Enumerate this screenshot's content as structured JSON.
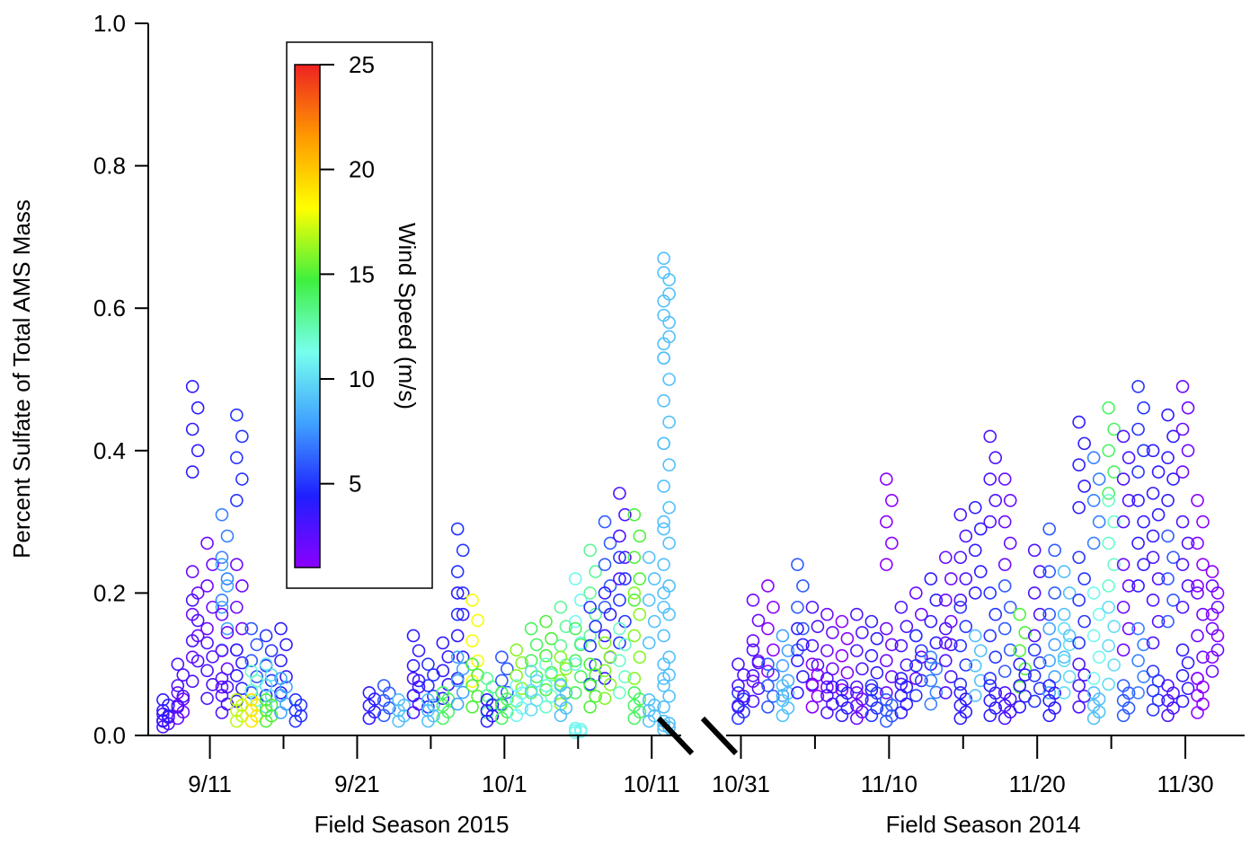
{
  "chart_data": {
    "type": "scatter",
    "title": "",
    "ylabel": "Percent Sulfate of Total AMS Mass",
    "ylim": [
      0,
      1.0
    ],
    "y_ticks": [
      "0.0",
      "0.2",
      "0.4",
      "0.6",
      "0.8",
      "1.0"
    ],
    "y_tick_values": [
      0,
      0.2,
      0.4,
      0.6,
      0.8,
      1.0
    ],
    "x_axis_break": true,
    "segments": [
      {
        "xlabel": "Field Season 2015",
        "x_range": [
          "9/7",
          "10/13"
        ],
        "x_ticks": [
          "9/11",
          "9/21",
          "10/1",
          "10/11"
        ]
      },
      {
        "xlabel": "Field Season 2014",
        "x_range": [
          "10/30",
          "12/4"
        ],
        "x_ticks": [
          "10/31",
          "11/10",
          "11/20",
          "11/30"
        ]
      }
    ],
    "colorbar": {
      "label": "Wind Speed (m/s)",
      "range": [
        1,
        25
      ],
      "ticks": [
        "5",
        "10",
        "15",
        "20",
        "25"
      ],
      "tick_values": [
        5,
        10,
        15,
        20,
        25
      ],
      "colormap": [
        "#8b00ff",
        "#1f1fff",
        "#3fa0ff",
        "#77ffee",
        "#3ff03f",
        "#ffff00",
        "#ff9900",
        "#ee2222"
      ]
    },
    "series": [
      {
        "points": [
          [
            "9/8",
            0.03,
            3
          ],
          [
            "9/8",
            0.05,
            4
          ],
          [
            "9/9",
            0.06,
            2
          ],
          [
            "9/9",
            0.1,
            3
          ],
          [
            "9/10",
            0.23,
            2
          ],
          [
            "9/10",
            0.49,
            4
          ],
          [
            "9/10",
            0.19,
            3
          ],
          [
            "9/11",
            0.27,
            2
          ],
          [
            "9/11",
            0.13,
            3
          ],
          [
            "9/12",
            0.31,
            7
          ],
          [
            "9/12",
            0.24,
            8
          ],
          [
            "9/12",
            0.17,
            2
          ],
          [
            "9/12",
            0.08,
            3
          ],
          [
            "9/13",
            0.45,
            5
          ],
          [
            "9/13",
            0.24,
            2
          ],
          [
            "9/13",
            0.12,
            4
          ],
          [
            "9/13",
            0.05,
            17
          ],
          [
            "9/14",
            0.15,
            6
          ],
          [
            "9/14",
            0.09,
            12
          ],
          [
            "9/14",
            0.05,
            19
          ],
          [
            "9/15",
            0.14,
            5
          ],
          [
            "9/15",
            0.1,
            10
          ],
          [
            "9/15",
            0.05,
            15
          ],
          [
            "9/16",
            0.15,
            4
          ],
          [
            "9/16",
            0.08,
            8
          ],
          [
            "9/17",
            0.05,
            5
          ]
        ]
      },
      {
        "points": [
          [
            "9/22",
            0.06,
            4
          ],
          [
            "9/23",
            0.07,
            6
          ],
          [
            "9/24",
            0.05,
            9
          ],
          [
            "9/25",
            0.08,
            3
          ],
          [
            "9/25",
            0.14,
            4
          ],
          [
            "9/26",
            0.1,
            5
          ],
          [
            "9/26",
            0.05,
            9
          ],
          [
            "9/27",
            0.13,
            4
          ],
          [
            "9/27",
            0.06,
            14
          ],
          [
            "9/28",
            0.29,
            5
          ],
          [
            "9/28",
            0.2,
            4
          ],
          [
            "9/28",
            0.11,
            8
          ],
          [
            "9/29",
            0.19,
            18
          ],
          [
            "9/29",
            0.1,
            15
          ],
          [
            "9/30",
            0.08,
            13
          ],
          [
            "9/30",
            0.05,
            4
          ],
          [
            "10/1",
            0.11,
            6
          ],
          [
            "10/1",
            0.06,
            14
          ],
          [
            "10/2",
            0.12,
            16
          ],
          [
            "10/2",
            0.07,
            11
          ],
          [
            "10/3",
            0.15,
            14
          ],
          [
            "10/3",
            0.09,
            10
          ],
          [
            "10/4",
            0.16,
            15
          ],
          [
            "10/4",
            0.1,
            12
          ],
          [
            "10/5",
            0.18,
            13
          ],
          [
            "10/5",
            0.11,
            16
          ],
          [
            "10/5",
            0.07,
            9
          ],
          [
            "10/6",
            0.22,
            11
          ],
          [
            "10/6",
            0.15,
            14
          ],
          [
            "10/6",
            0.01,
            11
          ],
          [
            "10/7",
            0.26,
            13
          ],
          [
            "10/7",
            0.18,
            5
          ],
          [
            "10/7",
            0.1,
            15
          ],
          [
            "10/8",
            0.3,
            6
          ],
          [
            "10/8",
            0.2,
            4
          ],
          [
            "10/8",
            0.13,
            16
          ],
          [
            "10/9",
            0.34,
            3
          ],
          [
            "10/9",
            0.25,
            5
          ],
          [
            "10/9",
            0.15,
            12
          ],
          [
            "10/10",
            0.31,
            15
          ],
          [
            "10/10",
            0.2,
            16
          ],
          [
            "10/10",
            0.06,
            14
          ],
          [
            "10/11",
            0.25,
            9
          ],
          [
            "10/11",
            0.05,
            9
          ],
          [
            "10/12",
            0.67,
            9
          ],
          [
            "10/12",
            0.65,
            9
          ],
          [
            "10/12",
            0.41,
            9
          ],
          [
            "10/12",
            0.3,
            9
          ],
          [
            "10/12",
            0.2,
            9
          ],
          [
            "10/12",
            0.1,
            9
          ],
          [
            "10/12",
            0.02,
            9
          ],
          [
            "10/12",
            0.53,
            9
          ]
        ]
      },
      {
        "points": [
          [
            "10/31",
            0.06,
            5
          ],
          [
            "10/31",
            0.1,
            3
          ],
          [
            "11/1",
            0.19,
            2
          ],
          [
            "11/1",
            0.12,
            3
          ],
          [
            "11/2",
            0.21,
            1
          ],
          [
            "11/2",
            0.1,
            6
          ],
          [
            "11/3",
            0.14,
            8
          ],
          [
            "11/3",
            0.07,
            9
          ],
          [
            "11/4",
            0.24,
            6
          ],
          [
            "11/4",
            0.15,
            4
          ],
          [
            "11/5",
            0.18,
            3
          ],
          [
            "11/5",
            0.1,
            1
          ],
          [
            "11/6",
            0.17,
            2
          ],
          [
            "11/6",
            0.08,
            3
          ],
          [
            "11/7",
            0.16,
            1
          ],
          [
            "11/7",
            0.07,
            4
          ],
          [
            "11/8",
            0.17,
            3
          ],
          [
            "11/8",
            0.06,
            2
          ],
          [
            "11/9",
            0.16,
            4
          ],
          [
            "11/9",
            0.07,
            5
          ],
          [
            "11/10",
            0.36,
            1
          ],
          [
            "11/10",
            0.15,
            2
          ],
          [
            "11/10",
            0.05,
            6
          ],
          [
            "11/11",
            0.18,
            3
          ],
          [
            "11/11",
            0.08,
            4
          ],
          [
            "11/12",
            0.2,
            2
          ],
          [
            "11/12",
            0.14,
            5
          ],
          [
            "11/13",
            0.22,
            4
          ],
          [
            "11/13",
            0.11,
            7
          ],
          [
            "11/14",
            0.25,
            2
          ],
          [
            "11/14",
            0.15,
            3
          ],
          [
            "11/15",
            0.31,
            3
          ],
          [
            "11/15",
            0.18,
            5
          ],
          [
            "11/15",
            0.06,
            4
          ],
          [
            "11/16",
            0.32,
            4
          ],
          [
            "11/16",
            0.14,
            9
          ],
          [
            "11/17",
            0.42,
            3
          ],
          [
            "11/17",
            0.2,
            5
          ],
          [
            "11/17",
            0.07,
            4
          ],
          [
            "11/18",
            0.36,
            2
          ],
          [
            "11/18",
            0.21,
            6
          ],
          [
            "11/18",
            0.06,
            3
          ],
          [
            "11/19",
            0.17,
            15
          ],
          [
            "11/19",
            0.1,
            4
          ],
          [
            "11/20",
            0.26,
            3
          ],
          [
            "11/20",
            0.12,
            5
          ],
          [
            "11/21",
            0.29,
            6
          ],
          [
            "11/21",
            0.15,
            8
          ],
          [
            "11/21",
            0.07,
            4
          ],
          [
            "11/22",
            0.23,
            9
          ],
          [
            "11/22",
            0.15,
            10
          ],
          [
            "11/23",
            0.44,
            4
          ],
          [
            "11/23",
            0.25,
            5
          ],
          [
            "11/23",
            0.1,
            3
          ],
          [
            "11/24",
            0.39,
            7
          ],
          [
            "11/24",
            0.2,
            11
          ],
          [
            "11/24",
            0.06,
            9
          ],
          [
            "11/25",
            0.46,
            14
          ],
          [
            "11/25",
            0.33,
            12
          ],
          [
            "11/25",
            0.18,
            10
          ],
          [
            "11/26",
            0.42,
            3
          ],
          [
            "11/26",
            0.24,
            2
          ],
          [
            "11/26",
            0.07,
            6
          ],
          [
            "11/27",
            0.49,
            5
          ],
          [
            "11/27",
            0.33,
            4
          ],
          [
            "11/27",
            0.15,
            7
          ],
          [
            "11/28",
            0.4,
            4
          ],
          [
            "11/28",
            0.25,
            3
          ],
          [
            "11/28",
            0.09,
            5
          ],
          [
            "11/29",
            0.45,
            4
          ],
          [
            "11/29",
            0.28,
            6
          ],
          [
            "11/29",
            0.07,
            3
          ],
          [
            "11/30",
            0.49,
            2
          ],
          [
            "11/30",
            0.3,
            3
          ],
          [
            "11/30",
            0.12,
            4
          ],
          [
            "12/1",
            0.33,
            1
          ],
          [
            "12/1",
            0.2,
            2
          ],
          [
            "12/1",
            0.08,
            1
          ],
          [
            "12/2",
            0.23,
            1
          ],
          [
            "12/2",
            0.21,
            2
          ]
        ]
      }
    ]
  }
}
